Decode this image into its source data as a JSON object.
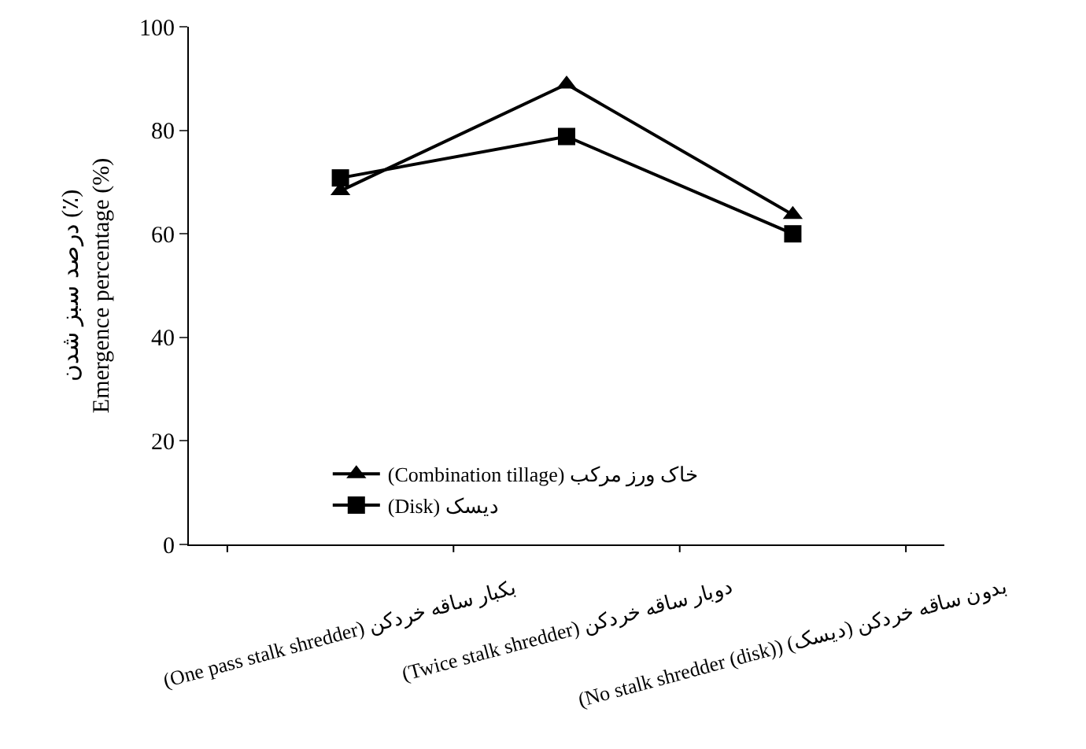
{
  "chart_data": {
    "type": "line",
    "ylabel": "درصد سبز شدن (٪)\nEmergence percentage (%)",
    "categories": [
      "(One pass stalk shredder) بکبار ساقه خردکن",
      "(Twice stalk shredder) دوبار ساقه خردکن",
      "(No stalk shredder (disk)) (دیسک) بدون ساقه خردکن"
    ],
    "series": [
      {
        "name": "(Combination tillage) خاک ورز مرکب",
        "color": "#000000",
        "marker": "triangle",
        "values": [
          68.3,
          88.9,
          63.7
        ]
      },
      {
        "name": "(Disk) دیسک",
        "color": "#000000",
        "marker": "square",
        "values": [
          70.8,
          78.8,
          60
        ]
      }
    ],
    "ylim": [
      0,
      100
    ],
    "yticks": [
      0,
      20,
      40,
      60,
      80,
      100
    ],
    "legend": "bottom left",
    "line_style": "solid"
  }
}
